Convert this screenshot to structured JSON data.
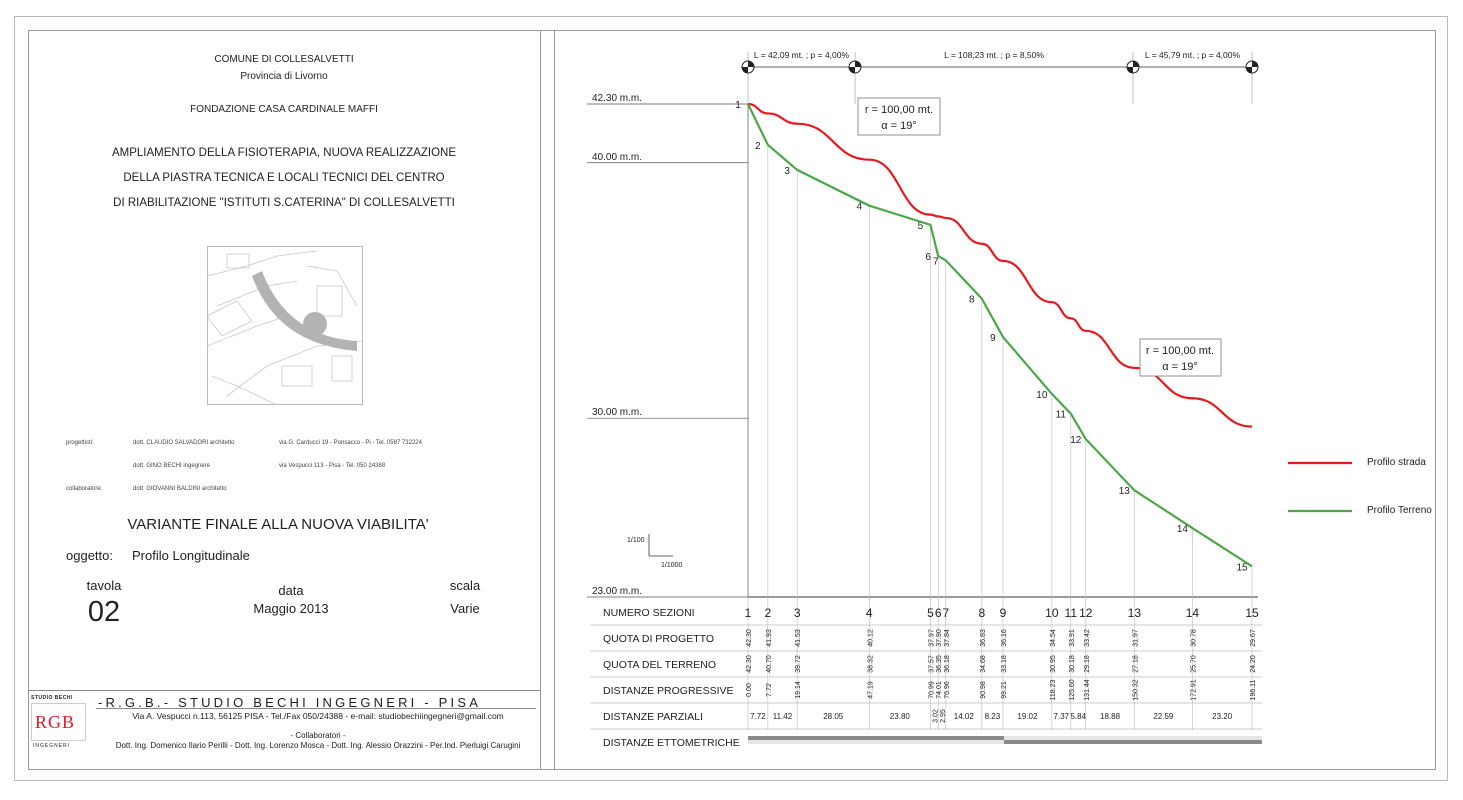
{
  "titleblock": {
    "comune": "COMUNE DI COLLESALVETTI",
    "provincia": "Provincia di Livorno",
    "fondazione": "FONDAZIONE CASA CARDINALE MAFFI",
    "project_line1": "AMPLIAMENTO DELLA FISIOTERAPIA, NUOVA REALIZZAZIONE",
    "project_line2": "DELLA PIASTRA TECNICA E LOCALI TECNICI DEL CENTRO",
    "project_line3": "DI RIABILITAZIONE \"ISTITUTI S.CATERINA\" DI COLLESALVETTI",
    "progettisti_label": "progettisti:",
    "progettista1_name": "dott. CLAUDIO SALVADORI architetto",
    "progettista1_addr": "via G. Carducci 19 - Ponsacco - Pi - Tel. 0587 732224",
    "progettista2_name": "dott. GINO BECHI ingegnere",
    "progettista2_addr": "via Vespucci 113 -  Pisa - Tel. 050 24388",
    "collaboratore_label": "collaboratore:",
    "collaboratore_name": "dott. GIOVANNI BALDINI architetto",
    "variant_title": "VARIANTE FINALE ALLA  NUOVA VIABILITA'",
    "oggetto_label": "oggetto:",
    "oggetto_value": "Profilo Longitudinale",
    "tavola_label": "tavola",
    "tavola_value": "02",
    "data_label": "data",
    "data_value": "Maggio 2013",
    "scala_label": "scala",
    "scala_value": "Varie"
  },
  "studio": {
    "logo_top": "STUDIO BECHI",
    "logo_letters": "RGB",
    "logo_bottom": "INGEGNERI",
    "name": "-R.G.B.- STUDIO BECHI INGEGNERI - PISA",
    "address": "Via A. Vespucci n.113,  56125 PISA  - Tel./Fax 050/24388  - e-mail: studiobechiingegneri@gmail.com",
    "collab_label": "- Collaboratori -",
    "collab_names": "Dott. Ing. Domenico Ilario Perilli - Dott. Ing. Lorenzo Mosca - Dott. Ing. Alessio Orazzini - Per.Ind. Pierluigi Carugini"
  },
  "profile": {
    "segment_labels": [
      "L = 42,09 mt.  ;  p = 4,00%",
      "L = 108,23 mt.  ;  p = 8,50%",
      "L = 45,79 mt.  ;  p = 4,00%"
    ],
    "curve_label_1_r": "r = 100,00 mt.",
    "curve_label_1_a": "α = 19°",
    "curve_label_2_r": "r = 100,00 mt.",
    "curve_label_2_a": "α = 19°",
    "elevations": [
      {
        "label": "42.30 m.m.",
        "value": 42.3
      },
      {
        "label": "40.00 m.m.",
        "value": 40.0
      },
      {
        "label": "30.00 m.m.",
        "value": 30.0
      },
      {
        "label": "23.00 m.m.",
        "value": 23.0
      }
    ],
    "scale_v": "1/100",
    "scale_h": "1/1000",
    "legend": [
      {
        "name": "Profilo strada",
        "color": "#e8191e"
      },
      {
        "name": "Profilo Terreno",
        "color": "#4ea64b"
      }
    ],
    "table_labels": [
      "NUMERO SEZIONI",
      "QUOTA DI PROGETTO",
      "QUOTA DEL TERRENO",
      "DISTANZE PROGRESSIVE",
      "DISTANZE PARZIALI",
      "DISTANZE ETTOMETRICHE"
    ],
    "sections": [
      {
        "n": "1",
        "prog": "42.30",
        "terr": "42.30",
        "dist": "0.00",
        "x": 0.0
      },
      {
        "n": "2",
        "prog": "41.93",
        "terr": "40.70",
        "dist": "7.72",
        "x": 7.72
      },
      {
        "n": "3",
        "prog": "41.53",
        "terr": "39.72",
        "dist": "19.14",
        "x": 19.14
      },
      {
        "n": "4",
        "prog": "40.12",
        "terr": "38.32",
        "dist": "47.19",
        "x": 47.19
      },
      {
        "n": "5",
        "prog": "37.97",
        "terr": "37.57",
        "dist": "70.99",
        "x": 70.99
      },
      {
        "n": "6",
        "prog": "37.90",
        "terr": "36.35",
        "dist": "74.01",
        "x": 74.01
      },
      {
        "n": "7",
        "prog": "37.84",
        "terr": "36.18",
        "dist": "76.96",
        "x": 76.96
      },
      {
        "n": "8",
        "prog": "36.83",
        "terr": "34.68",
        "dist": "90.98",
        "x": 90.98
      },
      {
        "n": "9",
        "prog": "36.16",
        "terr": "33.18",
        "dist": "99.21",
        "x": 99.21
      },
      {
        "n": "10",
        "prog": "34.54",
        "terr": "30.95",
        "dist": "118.23",
        "x": 118.23
      },
      {
        "n": "11",
        "prog": "33.91",
        "terr": "30.18",
        "dist": "125.60",
        "x": 125.6
      },
      {
        "n": "12",
        "prog": "33.42",
        "terr": "29.18",
        "dist": "131.44",
        "x": 131.44
      },
      {
        "n": "13",
        "prog": "31.97",
        "terr": "27.18",
        "dist": "150.32",
        "x": 150.32
      },
      {
        "n": "14",
        "prog": "30.78",
        "terr": "25.70",
        "dist": "172.91",
        "x": 172.91
      },
      {
        "n": "15",
        "prog": "29.67",
        "terr": "24.20",
        "dist": "196.11",
        "x": 196.11
      }
    ],
    "partials": [
      "7.72",
      "11.42",
      "28.05",
      "23.80",
      "3.02",
      "2.95",
      "14.02",
      "8.23",
      "19.02",
      "7.37",
      "5.84",
      "18.88",
      "22.59",
      "23.20"
    ]
  }
}
